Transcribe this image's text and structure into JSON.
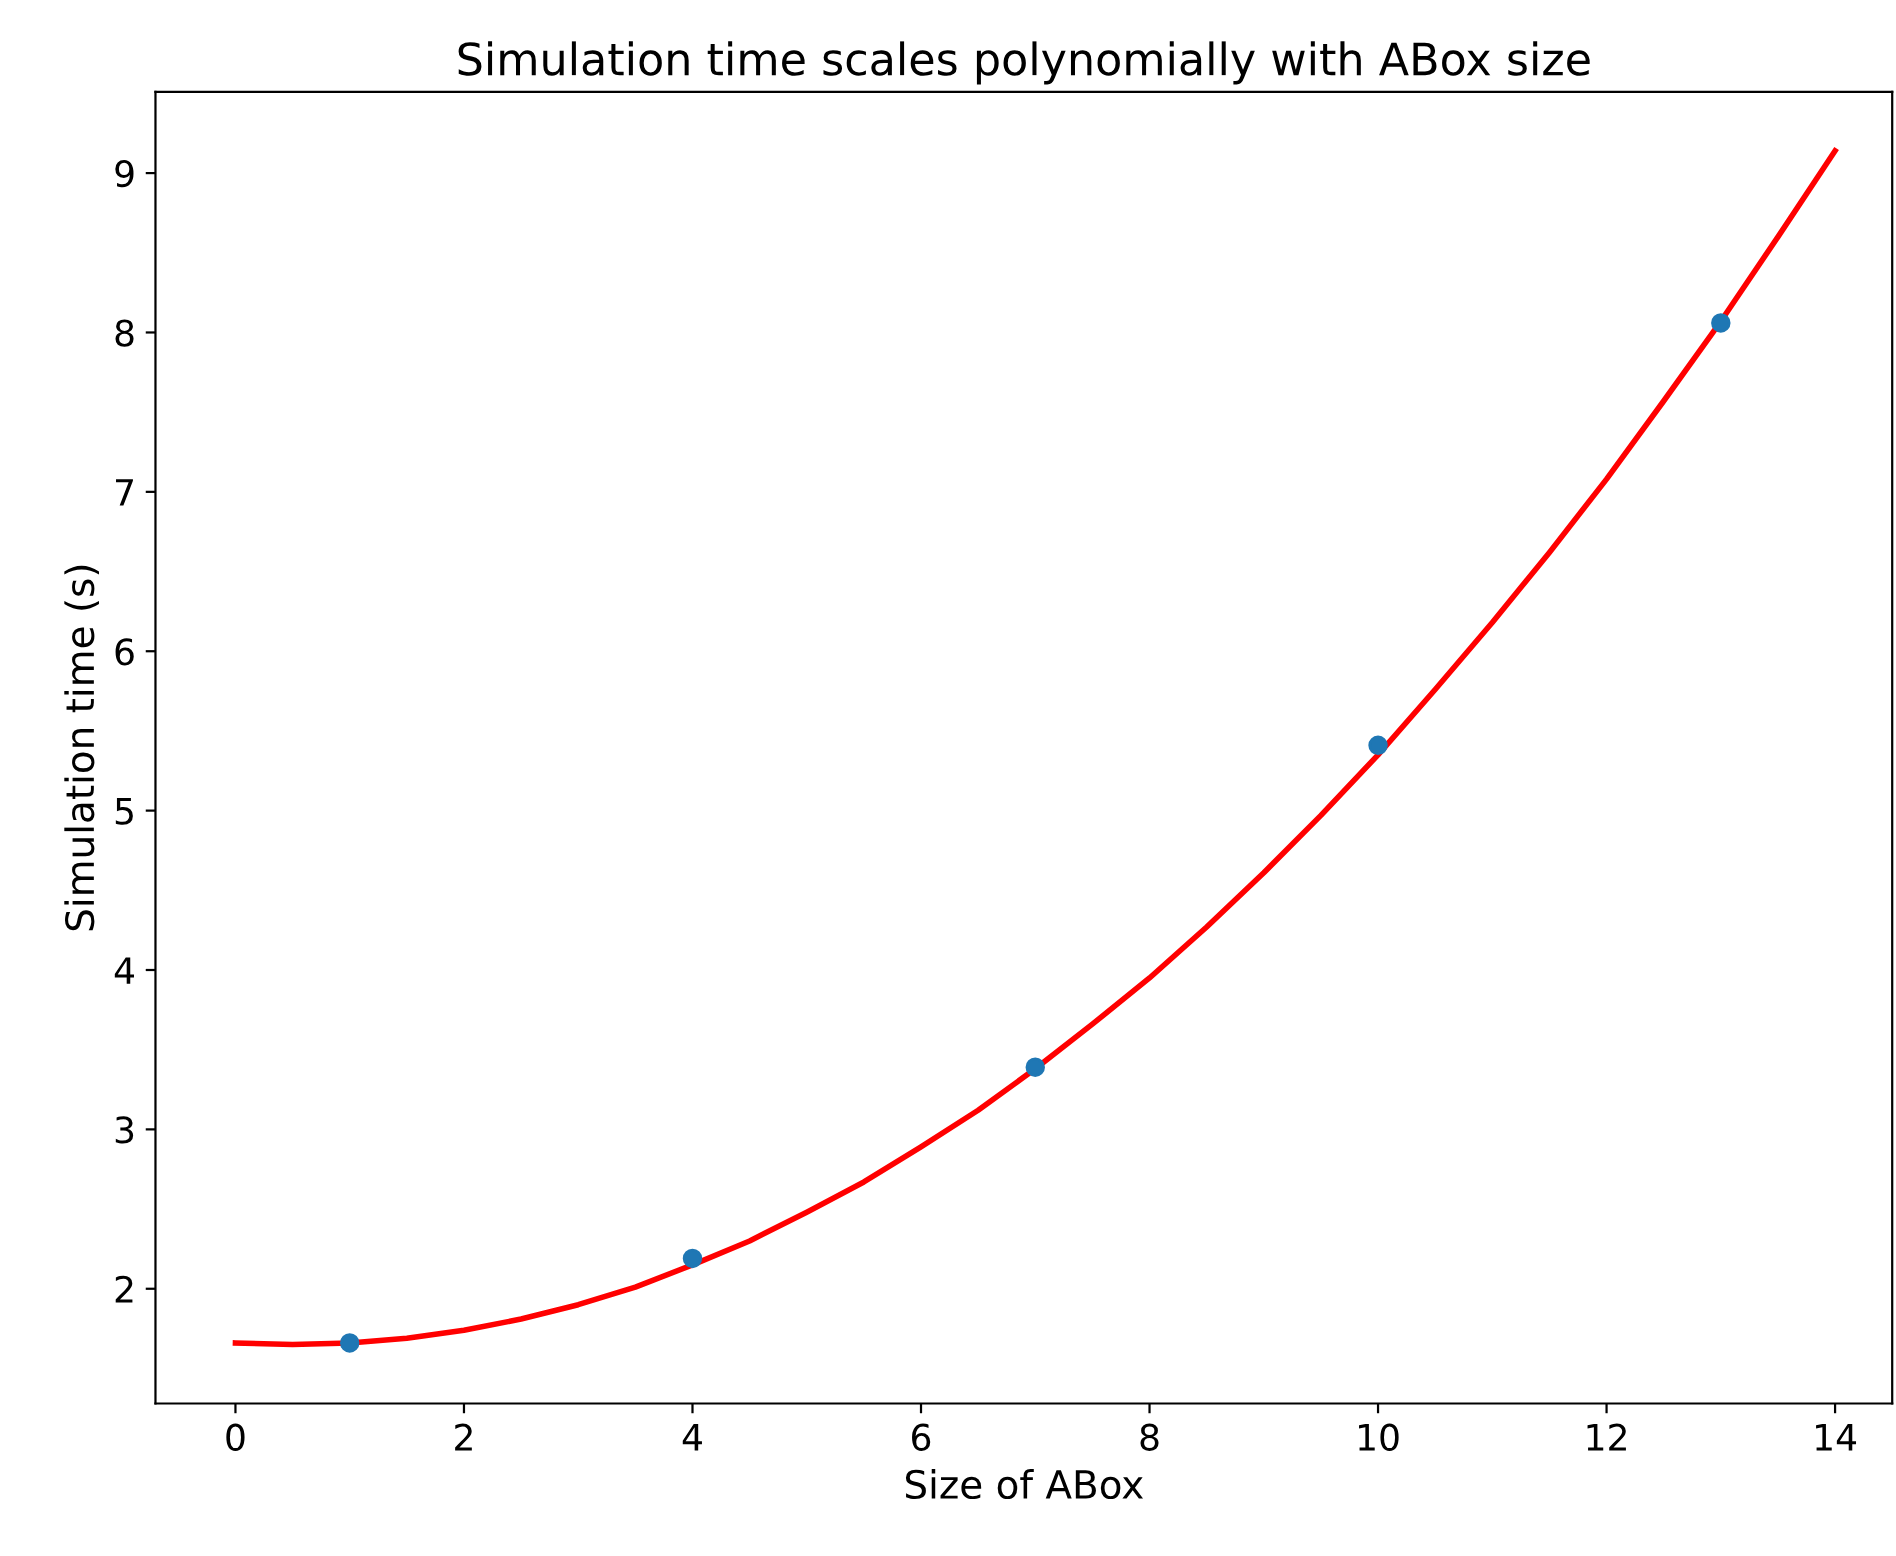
{
  "chart_data": {
    "type": "scatter",
    "title": "Simulation time scales polynomially with ABox size",
    "xlabel": "Size of ABox",
    "ylabel": "Simulation time (s)",
    "series": [
      {
        "type": "scatter",
        "marker": "circle",
        "color": "#1f77b4",
        "x": [
          1,
          4,
          7,
          10,
          13
        ],
        "values": [
          1.66,
          2.19,
          3.39,
          5.41,
          8.06
        ]
      },
      {
        "type": "line",
        "marker": "none",
        "color": "#ff0000",
        "x": [
          0,
          0.5,
          1,
          1.5,
          2,
          2.5,
          3,
          3.5,
          4,
          4.5,
          5,
          5.5,
          6,
          6.5,
          7,
          7.5,
          8,
          8.5,
          9,
          9.5,
          10,
          10.5,
          11,
          11.5,
          12,
          12.5,
          13,
          13.5,
          14
        ],
        "values": [
          1.66,
          1.65,
          1.66,
          1.69,
          1.74,
          1.81,
          1.9,
          2.01,
          2.15,
          2.3,
          2.48,
          2.67,
          2.89,
          3.12,
          3.38,
          3.66,
          3.95,
          4.27,
          4.61,
          4.97,
          5.35,
          5.76,
          6.18,
          6.62,
          7.08,
          7.57,
          8.07,
          8.6,
          9.14
        ]
      }
    ],
    "xlim": [
      -0.7,
      14.5
    ],
    "xticks": [
      0,
      2,
      4,
      6,
      8,
      10,
      12,
      14
    ],
    "ylim": [
      1.28,
      9.51
    ],
    "yticks": [
      2,
      3,
      4,
      5,
      6,
      7,
      8,
      9
    ],
    "grid": false,
    "legend": false
  }
}
